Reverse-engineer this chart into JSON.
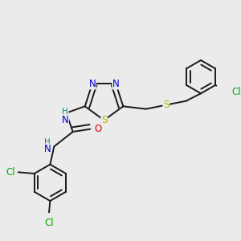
{
  "background_color": "#ebebeb",
  "bond_color": "#1a1a1a",
  "atom_colors": {
    "N": "#0000cc",
    "S": "#b8b800",
    "O": "#dd0000",
    "Cl": "#00aa00",
    "H": "#008888",
    "C": "#1a1a1a"
  },
  "figsize": [
    3.0,
    3.0
  ],
  "dpi": 100
}
